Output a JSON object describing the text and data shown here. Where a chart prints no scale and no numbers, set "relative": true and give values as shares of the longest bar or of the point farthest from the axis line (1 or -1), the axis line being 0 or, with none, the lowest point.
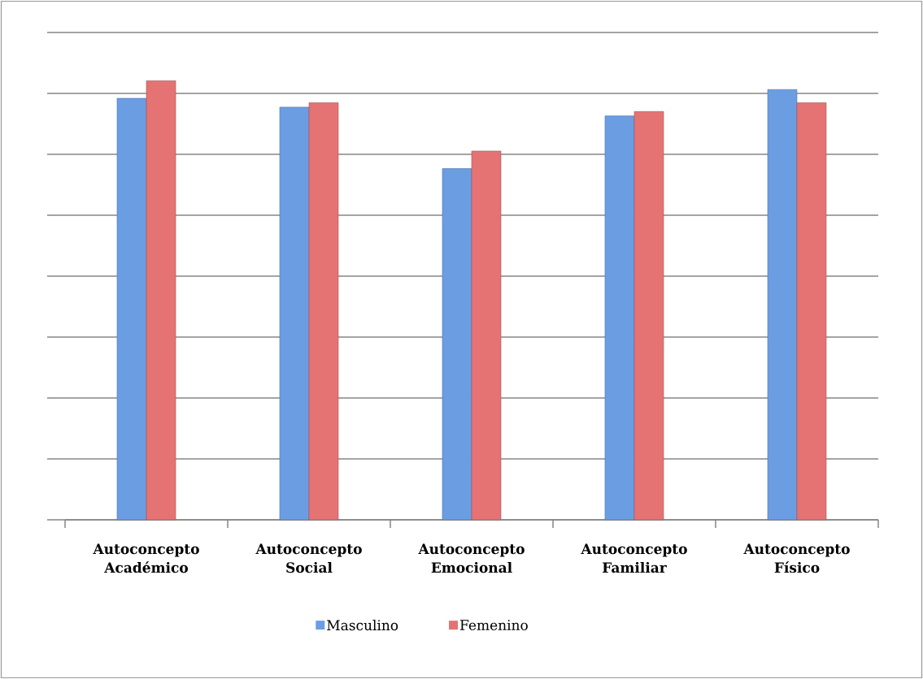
{
  "chart_data": {
    "type": "bar",
    "relative": true,
    "grid": "y",
    "legend": "bottom",
    "categories": [
      "Autoconcepto Académico",
      "Autoconcepto Social",
      "Autoconcepto Emocional",
      "Autoconcepto Familiar",
      "Autoconcepto Físico"
    ],
    "series": [
      {
        "name": "Masculino",
        "color": "#6b9de3",
        "values": [
          0.96,
          0.94,
          0.8,
          0.92,
          0.98
        ]
      },
      {
        "name": "Femenino",
        "color": "#e57373",
        "values": [
          1,
          0.95,
          0.84,
          0.93,
          0.95
        ]
      }
    ]
  }
}
